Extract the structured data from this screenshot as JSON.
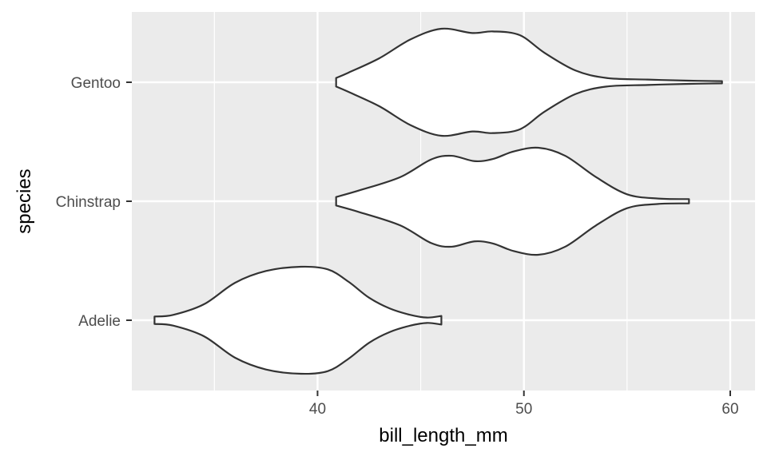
{
  "chart_data": {
    "type": "violin",
    "orientation": "horizontal",
    "xlabel": "bill_length_mm",
    "ylabel": "species",
    "xlim": [
      31.0,
      61.2
    ],
    "x_ticks": [
      40,
      50,
      60
    ],
    "x_minor_ticks": [
      35,
      45,
      55
    ],
    "categories": [
      "Adelie",
      "Chinstrap",
      "Gentoo"
    ],
    "grid": true,
    "legend": "none",
    "colors": {
      "panel": "#ebebeb",
      "grid": "#ffffff",
      "violin_fill": "#ffffff",
      "violin_outline": "#333333",
      "tick_text": "#4d4d4d",
      "tick_mark": "#333333"
    },
    "violins": [
      {
        "name": "Adelie",
        "range": [
          32.1,
          46.0
        ],
        "profile": [
          [
            32.1,
            0.07
          ],
          [
            33.0,
            0.1
          ],
          [
            34.5,
            0.3
          ],
          [
            36.0,
            0.7
          ],
          [
            37.5,
            0.92
          ],
          [
            39.2,
            1.0
          ],
          [
            40.5,
            0.95
          ],
          [
            41.5,
            0.72
          ],
          [
            42.5,
            0.42
          ],
          [
            43.5,
            0.22
          ],
          [
            44.5,
            0.1
          ],
          [
            45.3,
            0.05
          ],
          [
            46.0,
            0.08
          ]
        ]
      },
      {
        "name": "Chinstrap",
        "range": [
          40.9,
          58.0
        ],
        "profile": [
          [
            40.9,
            0.08
          ],
          [
            42.0,
            0.2
          ],
          [
            44.0,
            0.45
          ],
          [
            45.5,
            0.78
          ],
          [
            46.5,
            0.85
          ],
          [
            47.6,
            0.75
          ],
          [
            48.5,
            0.79
          ],
          [
            49.5,
            0.93
          ],
          [
            50.7,
            1.0
          ],
          [
            52.0,
            0.85
          ],
          [
            53.5,
            0.45
          ],
          [
            55.0,
            0.13
          ],
          [
            56.5,
            0.05
          ],
          [
            58.0,
            0.04
          ]
        ]
      },
      {
        "name": "Gentoo",
        "range": [
          40.9,
          59.6
        ],
        "profile": [
          [
            40.9,
            0.08
          ],
          [
            41.5,
            0.18
          ],
          [
            43.0,
            0.45
          ],
          [
            44.5,
            0.8
          ],
          [
            46.0,
            1.0
          ],
          [
            47.5,
            0.92
          ],
          [
            48.5,
            0.95
          ],
          [
            49.8,
            0.88
          ],
          [
            51.0,
            0.55
          ],
          [
            52.5,
            0.22
          ],
          [
            54.0,
            0.08
          ],
          [
            56.0,
            0.05
          ],
          [
            58.0,
            0.03
          ],
          [
            59.6,
            0.02
          ]
        ]
      }
    ]
  }
}
